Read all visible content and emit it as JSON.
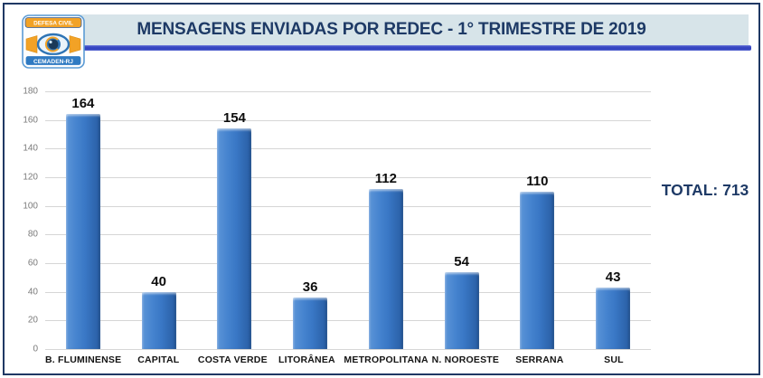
{
  "header": {
    "title": "MENSAGENS ENVIADAS POR REDEC - 1° TRIMESTRE DE 2019",
    "logo": {
      "top_text": "DEFESA CIVIL",
      "bottom_text": "CEMADEN-RJ"
    }
  },
  "summary": {
    "total_label": "TOTAL: 713"
  },
  "chart_data": {
    "type": "bar",
    "title": "MENSAGENS ENVIADAS POR REDEC - 1° TRIMESTRE DE 2019",
    "categories": [
      "B. FLUMINENSE",
      "CAPITAL",
      "COSTA VERDE",
      "LITORÂNEA",
      "METROPOLITANA",
      "N. NOROESTE",
      "SERRANA",
      "SUL"
    ],
    "values": [
      164,
      40,
      154,
      36,
      112,
      54,
      110,
      43
    ],
    "total": 713,
    "xlabel": "",
    "ylabel": "",
    "ylim": [
      0,
      180
    ],
    "ytick_step": 20,
    "grid": true,
    "data_labels": true,
    "legend": false
  },
  "colors": {
    "frame_border": "#1f3864",
    "header_background": "#d7e4e9",
    "title_text": "#1e3a66",
    "underline_accent": "#3a49c4",
    "bar_fill": "#3a78c6",
    "gridline": "#d6d6d6",
    "axis_tick_text": "#7a7a7a",
    "data_label_text": "#0d0d0d",
    "total_text": "#1e3a66",
    "logo_orange": "#f2a226",
    "logo_blue": "#2e74b5"
  }
}
